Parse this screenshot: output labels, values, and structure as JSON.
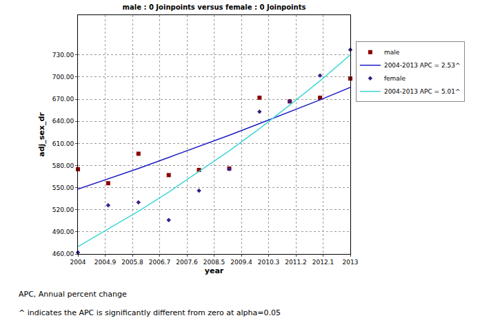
{
  "chart_data": {
    "type": "scatter",
    "title": "male : 0 Joinpoints versus female : 0 Joinpoints",
    "x_label": "year",
    "y_label": "adj_sex_dr",
    "x": [
      2004,
      2005,
      2006,
      2007,
      2008,
      2009,
      2010,
      2011,
      2012,
      2013
    ],
    "series": [
      {
        "name": "male",
        "type": "scatter",
        "marker": "square",
        "color": "#8b0000",
        "values": [
          575,
          556,
          596,
          567,
          574,
          576,
          672,
          667,
          672,
          698
        ]
      },
      {
        "name": "2004-2013 APC = 2.53^",
        "type": "line",
        "line_style": "solid",
        "color": "#1c1cc4",
        "values": [
          548,
          562,
          576,
          591,
          606,
          621,
          637,
          653,
          669,
          686
        ]
      },
      {
        "name": "female",
        "type": "scatter",
        "marker": "diamond",
        "color": "#3b1e8c",
        "values": [
          462,
          526,
          530,
          506,
          546,
          575,
          653,
          667,
          702,
          737
        ]
      },
      {
        "name": "2004-2013 APC = 5.01^",
        "type": "line",
        "line_style": "solid",
        "color": "#3fd6d6",
        "values": [
          470,
          494,
          518,
          544,
          572,
          600,
          630,
          662,
          695,
          730
        ]
      }
    ],
    "xlim": [
      2004,
      2013
    ],
    "xticks": [
      2004,
      2004.9,
      2005.8,
      2006.7,
      2007.6,
      2008.5,
      2009.4,
      2010.3,
      2011.2,
      2012.1,
      2013
    ],
    "ylim": [
      460,
      784
    ],
    "yticks": [
      {
        "value": 460,
        "label": "460.00"
      },
      {
        "value": 490,
        "label": "490.00"
      },
      {
        "value": 520,
        "label": "520.00"
      },
      {
        "value": 550,
        "label": "550.00"
      },
      {
        "value": 580,
        "label": "580.00"
      },
      {
        "value": 610,
        "label": "610.00"
      },
      {
        "value": 640,
        "label": "640.00"
      },
      {
        "value": 670,
        "label": "670.00"
      },
      {
        "value": 700,
        "label": "700.00"
      },
      {
        "value": 730,
        "label": "730.00"
      }
    ],
    "grid": true,
    "legend": "right",
    "annotations": [
      "APC, Annual percent change",
      "^ indicates the APC is significantly different from zero at alpha=0.05"
    ]
  }
}
